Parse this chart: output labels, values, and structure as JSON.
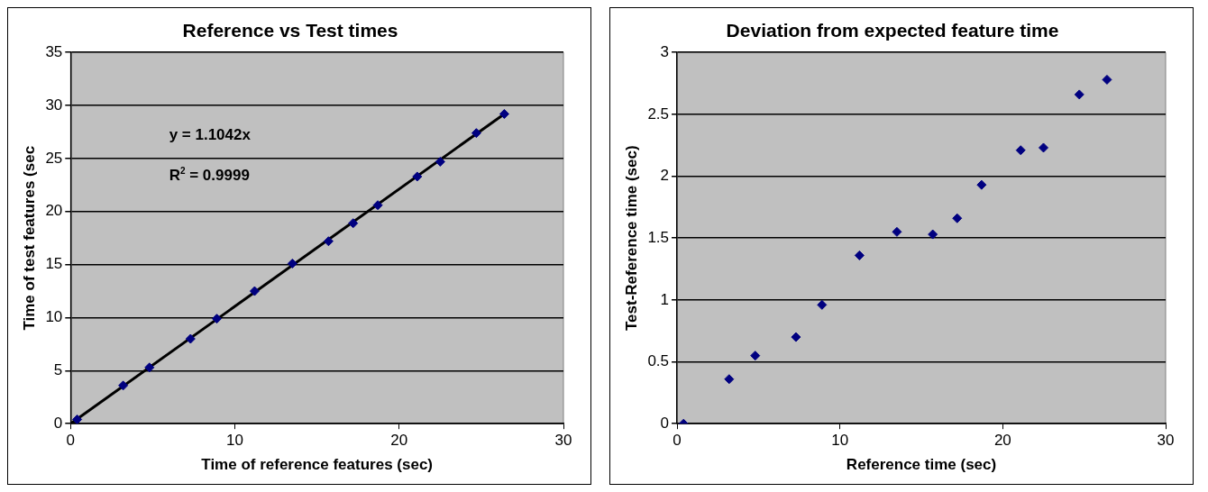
{
  "chart_data": [
    {
      "type": "scatter",
      "title": "Reference vs Test times",
      "xlabel": "Time of reference features (sec)",
      "ylabel": "Time of test features (sec",
      "grid": "y",
      "legend": false,
      "xlim": [
        0,
        30
      ],
      "xticks": [
        0,
        10,
        20,
        30
      ],
      "ylim": [
        0,
        35
      ],
      "yticks": [
        0,
        5,
        10,
        15,
        20,
        25,
        30,
        35
      ],
      "annotations": [
        "y = 1.1042x",
        "R$^{2}$ = 0.9999"
      ],
      "series": [
        {
          "type": "scatter",
          "marker": "diamond",
          "color": "#000080",
          "x": [
            0.4,
            3.2,
            4.8,
            7.3,
            8.9,
            11.2,
            13.5,
            15.7,
            17.2,
            18.7,
            21.1,
            22.5,
            24.7,
            26.4
          ],
          "values": [
            0.4,
            3.6,
            5.3,
            8.0,
            9.9,
            12.5,
            15.1,
            17.2,
            18.9,
            20.6,
            23.3,
            24.7,
            27.4,
            29.2
          ]
        },
        {
          "type": "line",
          "marker": "none",
          "color": "#000000",
          "x": [
            0,
            26.4
          ],
          "values": [
            0,
            29.2
          ]
        }
      ]
    },
    {
      "type": "scatter",
      "title": "Deviation from expected feature time",
      "xlabel": "Reference time (sec)",
      "ylabel": "Test-Reference time (sec)",
      "grid": "y",
      "legend": false,
      "xlim": [
        0,
        30
      ],
      "xticks": [
        0,
        10,
        20,
        30
      ],
      "ylim": [
        0,
        3
      ],
      "yticks": [
        0,
        0.5,
        1,
        1.5,
        2,
        2.5,
        3
      ],
      "series": [
        {
          "type": "scatter",
          "marker": "diamond",
          "color": "#000080",
          "x": [
            0.4,
            3.2,
            4.8,
            7.3,
            8.9,
            11.2,
            13.5,
            15.7,
            17.2,
            18.7,
            21.1,
            22.5,
            24.7,
            26.4
          ],
          "values": [
            0.0,
            0.36,
            0.55,
            0.7,
            0.96,
            1.36,
            1.55,
            1.53,
            1.66,
            1.93,
            2.21,
            2.23,
            2.66,
            2.78
          ]
        }
      ]
    }
  ]
}
